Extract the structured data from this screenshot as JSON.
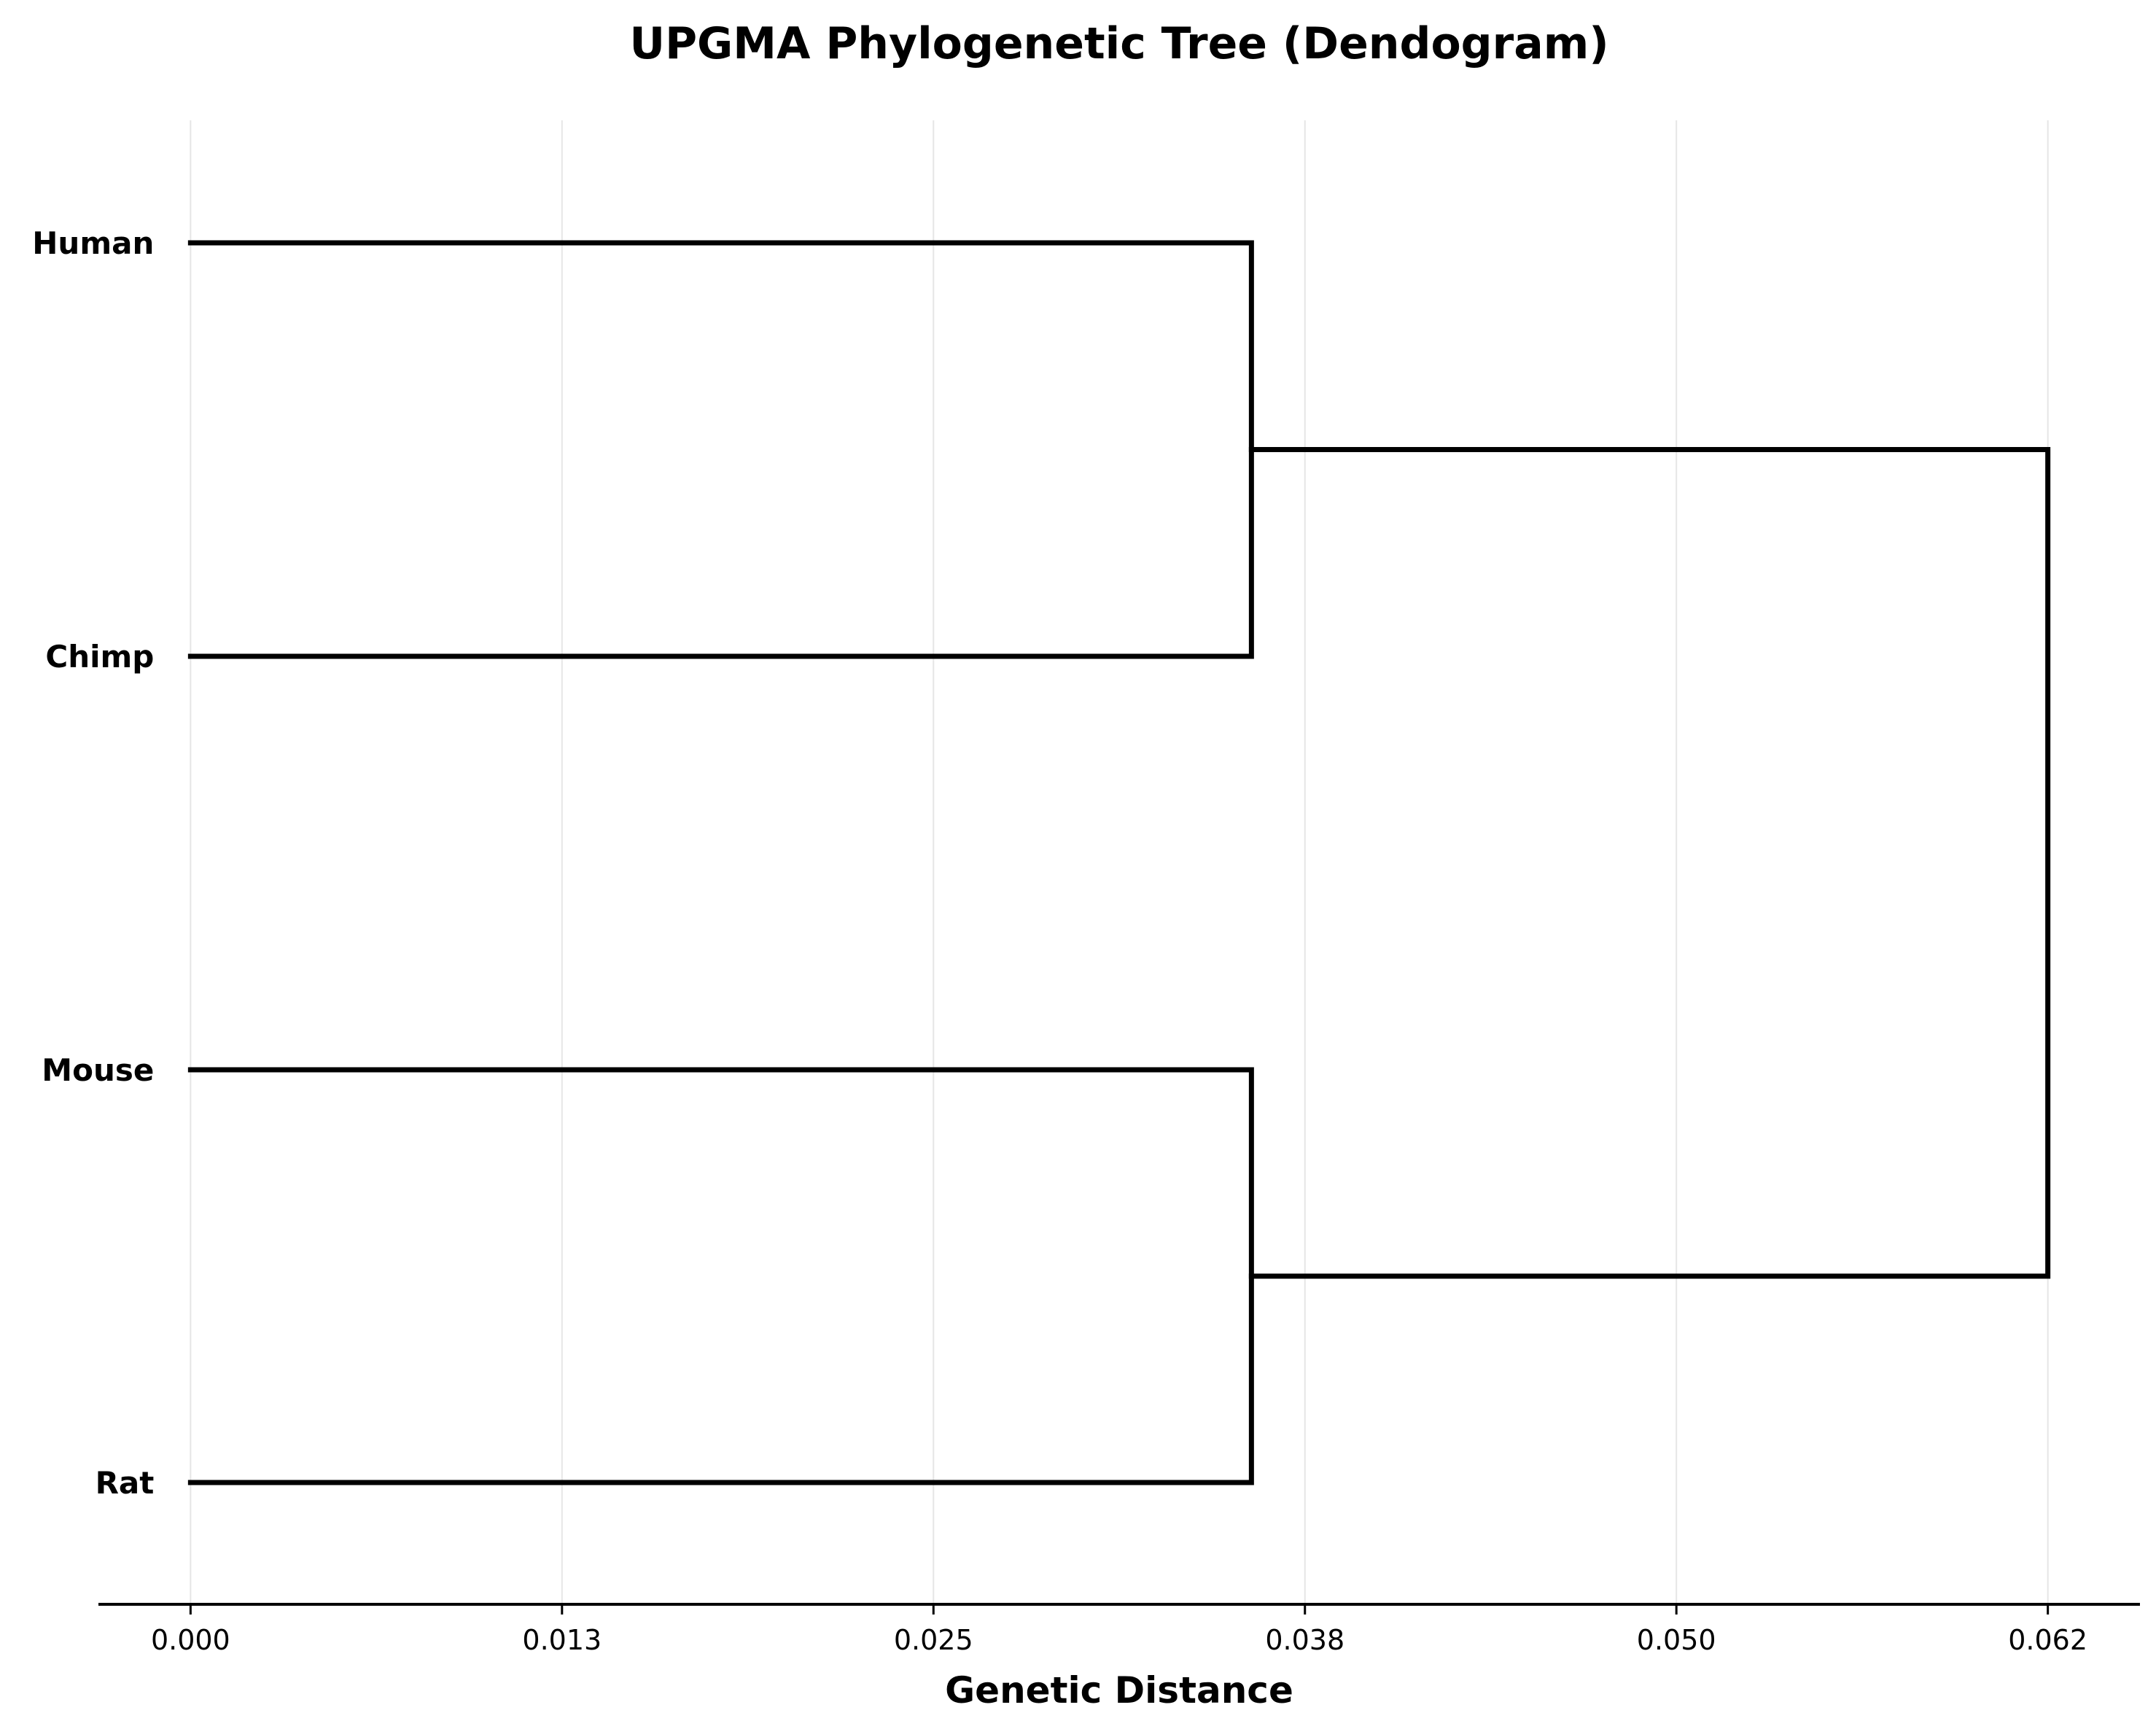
{
  "chart_data": {
    "type": "dendrogram",
    "title": "UPGMA Phylogenetic Tree (Dendogram)",
    "xlabel": "Genetic Distance",
    "ylabel": "",
    "xlim": [
      -0.0031,
      0.0656
    ],
    "xticks": [
      0.0,
      0.0125,
      0.025,
      0.0375,
      0.05,
      0.0625
    ],
    "xtick_labels": [
      "0.000",
      "0.013",
      "0.025",
      "0.038",
      "0.050",
      "0.062"
    ],
    "grid": "vertical",
    "leaves": [
      "Human",
      "Chimp",
      "Mouse",
      "Rat"
    ],
    "merges": [
      {
        "children": [
          "Human",
          "Chimp"
        ],
        "height": 0.0357
      },
      {
        "children": [
          "Mouse",
          "Rat"
        ],
        "height": 0.0357
      },
      {
        "children": [
          "Human+Chimp",
          "Mouse+Rat"
        ],
        "height": 0.0625
      }
    ],
    "branch_color": "#000000",
    "grid_color": "#e6e6e6"
  }
}
